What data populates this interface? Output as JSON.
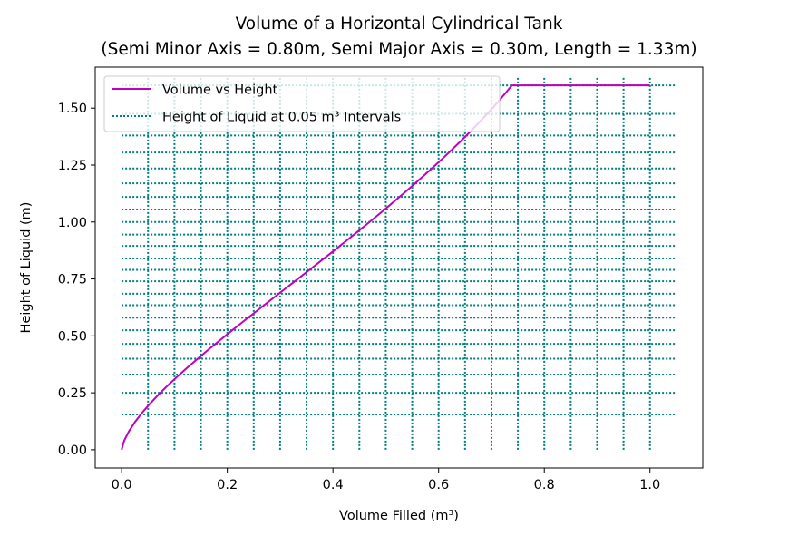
{
  "chart_data": {
    "type": "line",
    "title_line1": "Volume of a Horizontal Cylindrical Tank",
    "title_line2": "(Semi Minor Axis = 0.80m, Semi Major Axis = 0.30m, Length = 1.33m)",
    "xlabel": "Volume Filled (m³)",
    "ylabel": "Height of Liquid (m)",
    "xlim": [
      -0.05,
      1.1
    ],
    "ylim": [
      -0.08,
      1.68
    ],
    "xticks": [
      0.0,
      0.2,
      0.4,
      0.6,
      0.8,
      1.0
    ],
    "xtick_labels": [
      "0.0",
      "0.2",
      "0.4",
      "0.6",
      "0.8",
      "1.0"
    ],
    "yticks": [
      0.0,
      0.25,
      0.5,
      0.75,
      1.0,
      1.25,
      1.5
    ],
    "ytick_labels": [
      "0.00",
      "0.25",
      "0.50",
      "0.75",
      "1.00",
      "1.25",
      "1.50"
    ],
    "legend_location": "upper-left",
    "series": [
      {
        "name": "Volume vs Height",
        "style": "solid",
        "color": "#bf00bf",
        "x": [
          0.0,
          0.0048,
          0.0135,
          0.0247,
          0.0378,
          0.0527,
          0.0689,
          0.0863,
          0.1048,
          0.124,
          0.144,
          0.1645,
          0.1856,
          0.2069,
          0.2286,
          0.2505,
          0.2725,
          0.2947,
          0.3169,
          0.339,
          0.3611,
          0.3831,
          0.405,
          0.4266,
          0.448,
          0.4692,
          0.4901,
          0.5106,
          0.5309,
          0.5508,
          0.5703,
          0.5894,
          0.6081,
          0.6263,
          0.644,
          0.6612,
          0.6779,
          0.694,
          0.7095,
          0.7244,
          0.7387,
          0.7523,
          0.7652,
          0.7774,
          0.7888,
          0.7995,
          0.8094,
          0.8185,
          0.8268,
          0.8342,
          0.8407,
          0.8464,
          0.8511,
          0.8548,
          0.8576,
          0.8594,
          0.8603,
          0.8606,
          0.864,
          0.873,
          0.886,
          0.902,
          0.92,
          0.939,
          0.958,
          0.976,
          0.99,
          1.0
        ],
        "y": [
          0.0,
          0.04,
          0.08,
          0.12,
          0.16,
          0.2,
          0.24,
          0.28,
          0.32,
          0.36,
          0.4,
          0.44,
          0.48,
          0.52,
          0.56,
          0.6,
          0.64,
          0.68,
          0.72,
          0.76,
          0.8,
          0.84,
          0.88,
          0.92,
          0.96,
          1.0,
          1.04,
          1.08,
          1.12,
          1.16,
          1.2,
          1.24,
          1.28,
          1.32,
          1.36,
          1.4,
          1.44,
          1.48,
          1.52,
          1.56,
          1.6,
          1.6,
          1.6,
          1.6,
          1.6,
          1.6,
          1.6,
          1.6,
          1.6,
          1.6,
          1.6,
          1.6,
          1.6,
          1.6,
          1.6,
          1.6,
          1.6,
          1.6,
          1.6,
          1.6,
          1.6,
          1.6,
          1.6,
          1.6,
          1.6,
          1.6,
          1.6,
          1.6
        ]
      },
      {
        "name": "Height of Liquid at 0.05 m³ Intervals",
        "style": "dotted",
        "color": "#007f7f",
        "vertical_x": [
          0.05,
          0.1,
          0.15,
          0.2,
          0.25,
          0.3,
          0.35,
          0.4,
          0.45,
          0.5,
          0.55,
          0.6,
          0.65,
          0.7,
          0.75,
          0.8,
          0.85,
          0.9,
          0.95,
          1.0
        ],
        "vertical_ymax": 1.64,
        "horizontal_y": [
          0.155,
          0.25,
          0.33,
          0.4,
          0.465,
          0.525,
          0.58,
          0.635,
          0.685,
          0.74,
          0.79,
          0.84,
          0.895,
          0.945,
          1.0,
          1.055,
          1.11,
          1.17,
          1.235,
          1.305,
          1.38,
          1.475,
          1.6
        ],
        "horizontal_xmin": 0.0,
        "horizontal_xmax": 1.05
      }
    ]
  }
}
